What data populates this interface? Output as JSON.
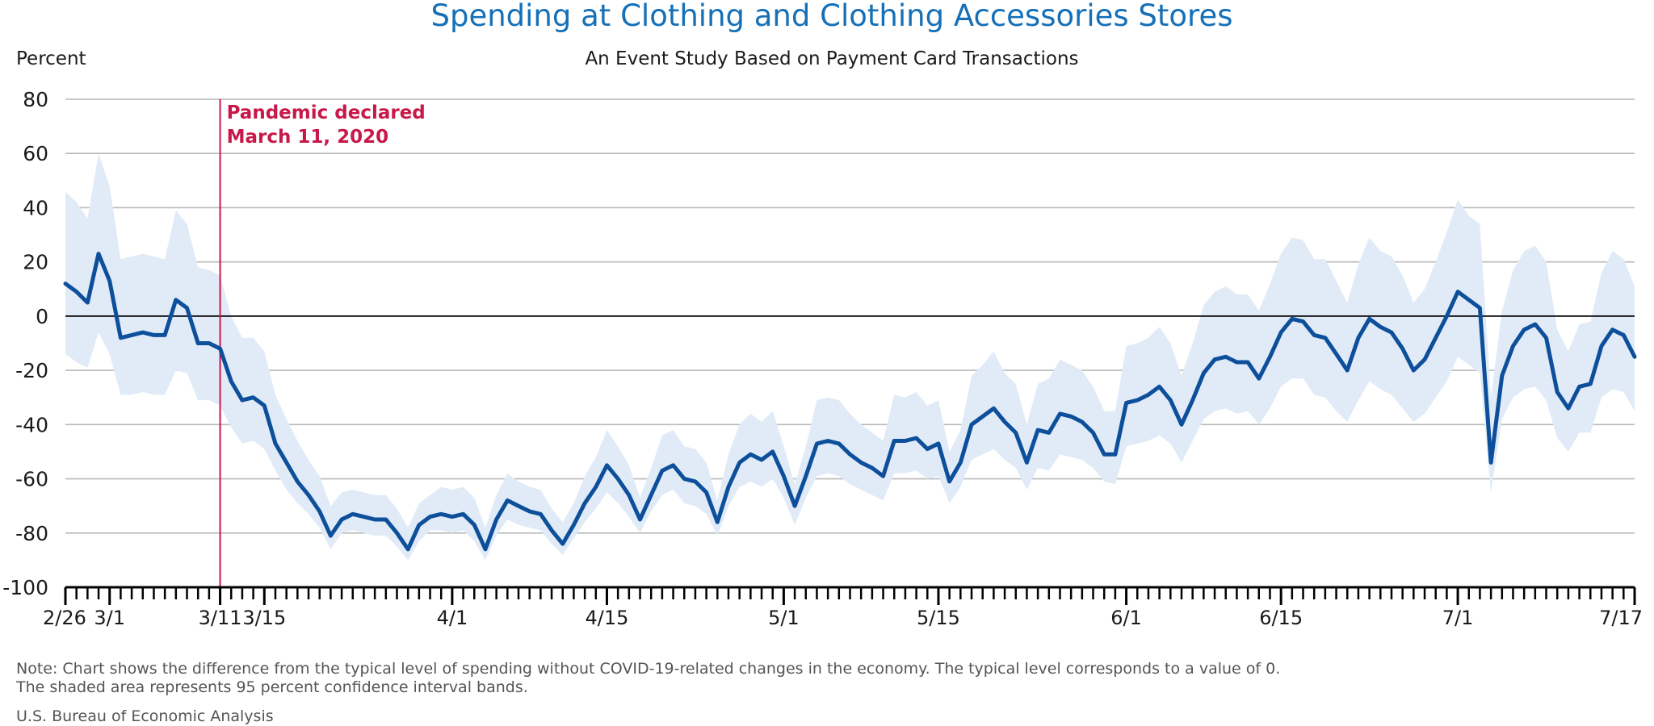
{
  "chart_data": {
    "type": "area",
    "title": "Spending at Clothing and Clothing Accessories Stores",
    "subtitle": "An Event Study Based on Payment Card Transactions",
    "ylabel": "Percent",
    "xlabel": "",
    "ylim": [
      -100,
      80
    ],
    "yticks": [
      80,
      60,
      40,
      20,
      0,
      -20,
      -40,
      -60,
      -80,
      -100
    ],
    "ytick_labels": [
      "80",
      "60",
      "40",
      "20",
      "0",
      "-20",
      "-40",
      "-60",
      "-80",
      "-100"
    ],
    "xlim": [
      "2020-02-26",
      "2020-07-17"
    ],
    "xtick_labels": [
      {
        "date": "2020-02-26",
        "label": "2/26"
      },
      {
        "date": "2020-03-01",
        "label": "3/1"
      },
      {
        "date": "2020-03-11",
        "label": "3/11"
      },
      {
        "date": "2020-03-15",
        "label": "3/15"
      },
      {
        "date": "2020-04-01",
        "label": "4/1"
      },
      {
        "date": "2020-04-15",
        "label": "4/15"
      },
      {
        "date": "2020-05-01",
        "label": "5/1"
      },
      {
        "date": "2020-05-15",
        "label": "5/15"
      },
      {
        "date": "2020-06-01",
        "label": "6/1"
      },
      {
        "date": "2020-06-15",
        "label": "6/15"
      },
      {
        "date": "2020-07-01",
        "label": "7/1"
      },
      {
        "date": "2020-07-17",
        "label": "7/17"
      }
    ],
    "grid": true,
    "annotations": [
      {
        "date": "2020-03-11",
        "lines": [
          "Pandemic declared",
          "March 11, 2020"
        ],
        "color": "#c8184a"
      }
    ],
    "colors": {
      "line": "#0d4f9b",
      "band": "#e1ebf7",
      "grid": "#b9b9b9",
      "title": "#1570b8",
      "annotation": "#c8184a"
    },
    "series": [
      {
        "kind": "line",
        "x": [
          "2020-02-26",
          "2020-02-27",
          "2020-02-28",
          "2020-02-29",
          "2020-03-01",
          "2020-03-02",
          "2020-03-03",
          "2020-03-04",
          "2020-03-05",
          "2020-03-06",
          "2020-03-07",
          "2020-03-08",
          "2020-03-09",
          "2020-03-10",
          "2020-03-11",
          "2020-03-12",
          "2020-03-13",
          "2020-03-14",
          "2020-03-15",
          "2020-03-16",
          "2020-03-17",
          "2020-03-18",
          "2020-03-19",
          "2020-03-20",
          "2020-03-21",
          "2020-03-22",
          "2020-03-23",
          "2020-03-24",
          "2020-03-25",
          "2020-03-26",
          "2020-03-27",
          "2020-03-28",
          "2020-03-29",
          "2020-03-30",
          "2020-03-31",
          "2020-04-01",
          "2020-04-02",
          "2020-04-03",
          "2020-04-04",
          "2020-04-05",
          "2020-04-06",
          "2020-04-07",
          "2020-04-08",
          "2020-04-09",
          "2020-04-10",
          "2020-04-11",
          "2020-04-12",
          "2020-04-13",
          "2020-04-14",
          "2020-04-15",
          "2020-04-16",
          "2020-04-17",
          "2020-04-18",
          "2020-04-19",
          "2020-04-20",
          "2020-04-21",
          "2020-04-22",
          "2020-04-23",
          "2020-04-24",
          "2020-04-25",
          "2020-04-26",
          "2020-04-27",
          "2020-04-28",
          "2020-04-29",
          "2020-04-30",
          "2020-05-01",
          "2020-05-02",
          "2020-05-03",
          "2020-05-04",
          "2020-05-05",
          "2020-05-06",
          "2020-05-07",
          "2020-05-08",
          "2020-05-09",
          "2020-05-10",
          "2020-05-11",
          "2020-05-12",
          "2020-05-13",
          "2020-05-14",
          "2020-05-15",
          "2020-05-16",
          "2020-05-17",
          "2020-05-18",
          "2020-05-19",
          "2020-05-20",
          "2020-05-21",
          "2020-05-22",
          "2020-05-23",
          "2020-05-24",
          "2020-05-25",
          "2020-05-26",
          "2020-05-27",
          "2020-05-28",
          "2020-05-29",
          "2020-05-30",
          "2020-05-31",
          "2020-06-01",
          "2020-06-02",
          "2020-06-03",
          "2020-06-04",
          "2020-06-05",
          "2020-06-06",
          "2020-06-07",
          "2020-06-08",
          "2020-06-09",
          "2020-06-10",
          "2020-06-11",
          "2020-06-12",
          "2020-06-13",
          "2020-06-14",
          "2020-06-15",
          "2020-06-16",
          "2020-06-17",
          "2020-06-18",
          "2020-06-19",
          "2020-06-20",
          "2020-06-21",
          "2020-06-22",
          "2020-06-23",
          "2020-06-24",
          "2020-06-25",
          "2020-06-26",
          "2020-06-27",
          "2020-06-28",
          "2020-06-29",
          "2020-06-30",
          "2020-07-01",
          "2020-07-02",
          "2020-07-03",
          "2020-07-04",
          "2020-07-05",
          "2020-07-06",
          "2020-07-07",
          "2020-07-08",
          "2020-07-09",
          "2020-07-10",
          "2020-07-11",
          "2020-07-12",
          "2020-07-13",
          "2020-07-14",
          "2020-07-15",
          "2020-07-16",
          "2020-07-17"
        ],
        "y": [
          12,
          9,
          5,
          23,
          13,
          -8,
          -7,
          -6,
          -7,
          -7,
          6,
          3,
          -10,
          -10,
          -12,
          -24,
          -31,
          -30,
          -33,
          -47,
          -54,
          -61,
          -66,
          -72,
          -81,
          -75,
          -73,
          -74,
          -75,
          -75,
          -80,
          -86,
          -77,
          -74,
          -73,
          -74,
          -73,
          -77,
          -86,
          -75,
          -68,
          -70,
          -72,
          -73,
          -79,
          -84,
          -77,
          -69,
          -63,
          -55,
          -60,
          -66,
          -75,
          -66,
          -57,
          -55,
          -60,
          -61,
          -65,
          -76,
          -63,
          -54,
          -51,
          -53,
          -50,
          -59,
          -70,
          -59,
          -47,
          -46,
          -47,
          -51,
          -54,
          -56,
          -59,
          -46,
          -46,
          -45,
          -49,
          -47,
          -61,
          -54,
          -40,
          -37,
          -34,
          -39,
          -43,
          -54,
          -42,
          -43,
          -36,
          -37,
          -39,
          -43,
          -51,
          -51,
          -32,
          -31,
          -29,
          -26,
          -31,
          -40,
          -31,
          -21,
          -16,
          -15,
          -17,
          -17,
          -23,
          -15,
          -6,
          -1,
          -2,
          -7,
          -8,
          -14,
          -20,
          -8,
          -1,
          -4,
          -6,
          -12,
          -20,
          -16,
          -8,
          0,
          9,
          6,
          3,
          -54,
          -22,
          -11,
          -5,
          -3,
          -8,
          -28,
          -34,
          -26,
          -25,
          -11,
          -5,
          -7,
          -15
        ]
      },
      {
        "kind": "band",
        "x": [
          "2020-02-26",
          "2020-02-27",
          "2020-02-28",
          "2020-02-29",
          "2020-03-01",
          "2020-03-02",
          "2020-03-03",
          "2020-03-04",
          "2020-03-05",
          "2020-03-06",
          "2020-03-07",
          "2020-03-08",
          "2020-03-09",
          "2020-03-10",
          "2020-03-11",
          "2020-03-12",
          "2020-03-13",
          "2020-03-14",
          "2020-03-15",
          "2020-03-16",
          "2020-03-17",
          "2020-03-18",
          "2020-03-19",
          "2020-03-20",
          "2020-03-21",
          "2020-03-22",
          "2020-03-23",
          "2020-03-24",
          "2020-03-25",
          "2020-03-26",
          "2020-03-27",
          "2020-03-28",
          "2020-03-29",
          "2020-03-30",
          "2020-03-31",
          "2020-04-01",
          "2020-04-02",
          "2020-04-03",
          "2020-04-04",
          "2020-04-05",
          "2020-04-06",
          "2020-04-07",
          "2020-04-08",
          "2020-04-09",
          "2020-04-10",
          "2020-04-11",
          "2020-04-12",
          "2020-04-13",
          "2020-04-14",
          "2020-04-15",
          "2020-04-16",
          "2020-04-17",
          "2020-04-18",
          "2020-04-19",
          "2020-04-20",
          "2020-04-21",
          "2020-04-22",
          "2020-04-23",
          "2020-04-24",
          "2020-04-25",
          "2020-04-26",
          "2020-04-27",
          "2020-04-28",
          "2020-04-29",
          "2020-04-30",
          "2020-05-01",
          "2020-05-02",
          "2020-05-03",
          "2020-05-04",
          "2020-05-05",
          "2020-05-06",
          "2020-05-07",
          "2020-05-08",
          "2020-05-09",
          "2020-05-10",
          "2020-05-11",
          "2020-05-12",
          "2020-05-13",
          "2020-05-14",
          "2020-05-15",
          "2020-05-16",
          "2020-05-17",
          "2020-05-18",
          "2020-05-19",
          "2020-05-20",
          "2020-05-21",
          "2020-05-22",
          "2020-05-23",
          "2020-05-24",
          "2020-05-25",
          "2020-05-26",
          "2020-05-27",
          "2020-05-28",
          "2020-05-29",
          "2020-05-30",
          "2020-05-31",
          "2020-06-01",
          "2020-06-02",
          "2020-06-03",
          "2020-06-04",
          "2020-06-05",
          "2020-06-06",
          "2020-06-07",
          "2020-06-08",
          "2020-06-09",
          "2020-06-10",
          "2020-06-11",
          "2020-06-12",
          "2020-06-13",
          "2020-06-14",
          "2020-06-15",
          "2020-06-16",
          "2020-06-17",
          "2020-06-18",
          "2020-06-19",
          "2020-06-20",
          "2020-06-21",
          "2020-06-22",
          "2020-06-23",
          "2020-06-24",
          "2020-06-25",
          "2020-06-26",
          "2020-06-27",
          "2020-06-28",
          "2020-06-29",
          "2020-06-30",
          "2020-07-01",
          "2020-07-02",
          "2020-07-03",
          "2020-07-04",
          "2020-07-05",
          "2020-07-06",
          "2020-07-07",
          "2020-07-08",
          "2020-07-09",
          "2020-07-10",
          "2020-07-11",
          "2020-07-12",
          "2020-07-13",
          "2020-07-14",
          "2020-07-15",
          "2020-07-16",
          "2020-07-17"
        ],
        "upper": [
          46,
          42,
          36,
          60,
          48,
          21,
          22,
          23,
          22,
          21,
          39,
          34,
          18,
          17,
          15,
          0,
          -8,
          -8,
          -13,
          -29,
          -38,
          -46,
          -53,
          -59,
          -70,
          -65,
          -64,
          -65,
          -66,
          -66,
          -71,
          -78,
          -69,
          -66,
          -63,
          -64,
          -63,
          -67,
          -78,
          -66,
          -58,
          -61,
          -63,
          -64,
          -71,
          -76,
          -69,
          -59,
          -52,
          -42,
          -48,
          -55,
          -67,
          -56,
          -44,
          -42,
          -48,
          -49,
          -54,
          -68,
          -51,
          -40,
          -36,
          -39,
          -35,
          -48,
          -62,
          -48,
          -31,
          -30,
          -31,
          -36,
          -40,
          -43,
          -46,
          -29,
          -30,
          -28,
          -33,
          -31,
          -50,
          -42,
          -22,
          -18,
          -13,
          -21,
          -25,
          -40,
          -25,
          -23,
          -16,
          -18,
          -20,
          -26,
          -35,
          -35,
          -11,
          -10,
          -8,
          -4,
          -10,
          -22,
          -10,
          4,
          9,
          11,
          8,
          8,
          2,
          12,
          23,
          29,
          28,
          21,
          21,
          13,
          5,
          19,
          29,
          24,
          22,
          15,
          5,
          10,
          20,
          31,
          43,
          37,
          34,
          -30,
          2,
          17,
          24,
          26,
          20,
          -5,
          -13,
          -3,
          -2,
          16,
          24,
          21,
          11
        ],
        "lower": [
          -14,
          -17,
          -19,
          -6,
          -14,
          -29,
          -29,
          -28,
          -29,
          -29,
          -20,
          -21,
          -31,
          -31,
          -33,
          -41,
          -47,
          -46,
          -49,
          -57,
          -64,
          -69,
          -73,
          -78,
          -86,
          -80,
          -79,
          -80,
          -81,
          -81,
          -85,
          -90,
          -83,
          -79,
          -79,
          -80,
          -79,
          -83,
          -90,
          -81,
          -75,
          -77,
          -78,
          -79,
          -84,
          -88,
          -82,
          -76,
          -71,
          -65,
          -69,
          -74,
          -80,
          -72,
          -66,
          -64,
          -69,
          -70,
          -73,
          -81,
          -70,
          -63,
          -61,
          -63,
          -60,
          -67,
          -77,
          -67,
          -59,
          -58,
          -59,
          -62,
          -64,
          -66,
          -68,
          -58,
          -58,
          -57,
          -60,
          -59,
          -69,
          -63,
          -53,
          -51,
          -49,
          -53,
          -56,
          -64,
          -56,
          -57,
          -51,
          -52,
          -53,
          -56,
          -61,
          -62,
          -48,
          -47,
          -46,
          -44,
          -47,
          -54,
          -46,
          -38,
          -35,
          -34,
          -36,
          -35,
          -40,
          -34,
          -26,
          -23,
          -23,
          -29,
          -30,
          -35,
          -39,
          -31,
          -24,
          -27,
          -29,
          -34,
          -39,
          -36,
          -30,
          -24,
          -15,
          -18,
          -21,
          -65,
          -38,
          -30,
          -27,
          -26,
          -31,
          -45,
          -50,
          -43,
          -43,
          -30,
          -27,
          -28,
          -35
        ]
      }
    ]
  },
  "footer": {
    "note_line1": "Note: Chart shows the difference from the typical level of spending without COVID-19-related changes in the economy. The typical level corresponds to a value of 0.",
    "note_line2": "The shaded area represents 95 percent confidence interval bands.",
    "source": "U.S. Bureau of Economic Analysis"
  }
}
